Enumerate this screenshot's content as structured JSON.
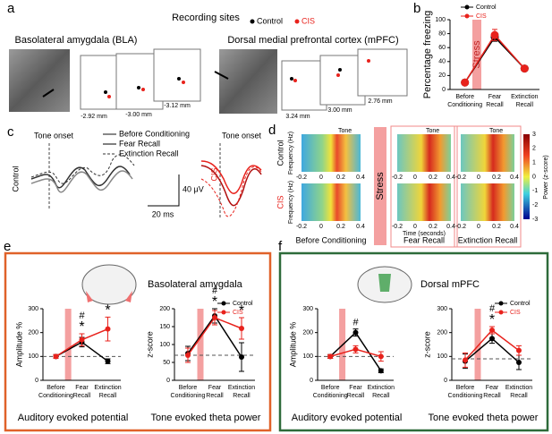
{
  "panel_labels": [
    "a",
    "b",
    "c",
    "d",
    "e",
    "f"
  ],
  "recording_sites": {
    "title": "Recording sites",
    "legend": [
      "Control",
      "CIS"
    ],
    "regions": [
      "Basolateral amygdala (BLA)",
      "Dorsal medial prefrontal cortex (mPFC)"
    ],
    "depths": [
      "-2.92 mm",
      "-3.00 mm",
      "-3.12 mm",
      "3.24 mm",
      "3.00 mm",
      "2.76 mm"
    ]
  },
  "traces": {
    "marker": "Tone onset",
    "legend": [
      "Before Conditioning",
      "Fear Recall",
      "Extinction Recall"
    ],
    "groups": [
      "Control",
      "CIS"
    ],
    "scale_time": "20 ms",
    "scale_voltage": "40 μV"
  },
  "spectrograms": {
    "marker": "Tone",
    "rows": [
      "Control",
      "CIS"
    ],
    "ylabel": "Frequency (Hz)",
    "xlabel": "Time (seconds)",
    "xticks": [
      "-0.2",
      "0",
      "0.2",
      "0.4"
    ],
    "columns": [
      "Before Conditioning",
      "Fear Recall",
      "Extinction Recall"
    ],
    "stress": "Stress",
    "colorbar_ticks": [
      "3",
      "2",
      "1",
      "0",
      "-1",
      "-2",
      "-3"
    ],
    "colorbar_label": "Power (z-score)"
  },
  "region_titles": [
    "Basolateral amygdala",
    "Dorsal mPFC"
  ],
  "chart_data": [
    {
      "type": "line",
      "ylabel": "Percentage freezing",
      "band": "Stress",
      "legend": true,
      "categories": [
        "Before Conditioning",
        "Fear Recall",
        "Extinction Recall"
      ],
      "series": [
        {
          "name": "Control",
          "color": "#000000",
          "values": [
            10,
            75,
            30
          ],
          "errors": [
            2,
            6,
            3
          ]
        },
        {
          "name": "CIS",
          "color": "#e8221c",
          "values": [
            10,
            78,
            30
          ],
          "errors": [
            2,
            8,
            3
          ]
        }
      ],
      "ylim": [
        0,
        100
      ],
      "yticks": [
        0,
        20,
        40,
        60,
        80,
        100
      ]
    },
    {
      "type": "line",
      "ylabel": "Amplitude %",
      "xlabel": "Auditory evoked potential",
      "legend": false,
      "categories": [
        "Before Conditioning",
        "Fear Recall",
        "Extinction Recall"
      ],
      "series": [
        {
          "name": "Control",
          "color": "#000000",
          "values": [
            100,
            160,
            80
          ],
          "errors": [
            8,
            20,
            10
          ]
        },
        {
          "name": "CIS",
          "color": "#e8221c",
          "values": [
            100,
            170,
            215
          ],
          "errors": [
            8,
            25,
            50
          ]
        }
      ],
      "ylim": [
        0,
        300
      ],
      "yticks": [
        0,
        100,
        200,
        300
      ],
      "hline": 100,
      "annotations": [
        {
          "text": "#",
          "category": "Fear Recall"
        },
        {
          "text": "*",
          "category": "Fear Recall"
        },
        {
          "text": "*",
          "category": "Extinction Recall"
        }
      ]
    },
    {
      "type": "line",
      "ylabel": "z-score",
      "xlabel": "Tone evoked theta power",
      "legend": true,
      "categories": [
        "Before Conditioning",
        "Fear Recall",
        "Extinction Recall"
      ],
      "series": [
        {
          "name": "Control",
          "color": "#000000",
          "values": [
            75,
            180,
            65
          ],
          "errors": [
            20,
            20,
            40
          ]
        },
        {
          "name": "CIS",
          "color": "#e8221c",
          "values": [
            70,
            175,
            145
          ],
          "errors": [
            20,
            20,
            30
          ]
        }
      ],
      "ylim": [
        0,
        200
      ],
      "yticks": [
        0,
        50,
        100,
        150,
        200
      ],
      "hline": 70,
      "annotations": [
        {
          "text": "#",
          "category": "Fear Recall"
        },
        {
          "text": "*",
          "category": "Fear Recall"
        },
        {
          "text": "*",
          "category": "Extinction Recall"
        }
      ]
    },
    {
      "type": "line",
      "ylabel": "Amplitude %",
      "xlabel": "Auditory evoked potential",
      "legend": false,
      "categories": [
        "Before Conditioning",
        "Fear Recall",
        "Extinction Recall"
      ],
      "series": [
        {
          "name": "Control",
          "color": "#000000",
          "values": [
            100,
            200,
            40
          ],
          "errors": [
            8,
            15,
            8
          ]
        },
        {
          "name": "CIS",
          "color": "#e8221c",
          "values": [
            100,
            130,
            100
          ],
          "errors": [
            8,
            15,
            20
          ]
        }
      ],
      "ylim": [
        0,
        300
      ],
      "yticks": [
        0,
        100,
        200,
        300
      ],
      "hline": 100,
      "annotations": [
        {
          "text": "#",
          "category": "Fear Recall"
        }
      ]
    },
    {
      "type": "line",
      "ylabel": "z-score",
      "xlabel": "Tone evoked theta power",
      "legend": true,
      "categories": [
        "Before Conditioning",
        "Fear Recall",
        "Extinction Recall"
      ],
      "series": [
        {
          "name": "Control",
          "color": "#000000",
          "values": [
            80,
            175,
            75
          ],
          "errors": [
            30,
            20,
            30
          ]
        },
        {
          "name": "CIS",
          "color": "#e8221c",
          "values": [
            85,
            210,
            125
          ],
          "errors": [
            30,
            15,
            20
          ]
        }
      ],
      "ylim": [
        0,
        300
      ],
      "yticks": [
        0,
        100,
        200,
        300
      ],
      "hline": 90,
      "annotations": [
        {
          "text": "#",
          "category": "Fear Recall"
        },
        {
          "text": "*",
          "category": "Fear Recall"
        }
      ]
    }
  ]
}
